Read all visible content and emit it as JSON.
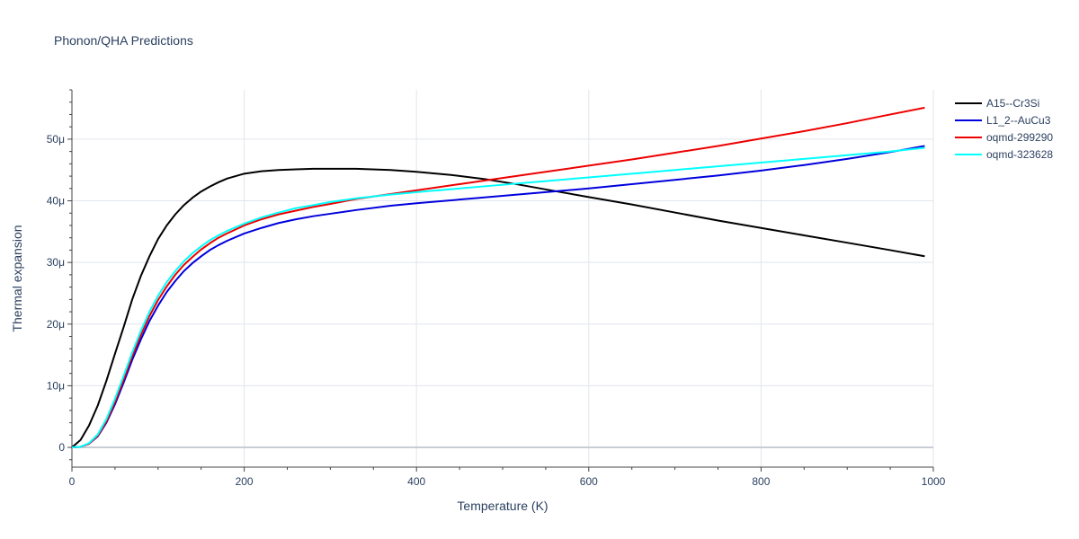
{
  "chart_data": {
    "type": "line",
    "title": "Phonon/QHA Predictions",
    "xlabel": "Temperature (K)",
    "ylabel": "Thermal expansion",
    "xlim": [
      0,
      1000
    ],
    "ylim": [
      -3.2e-06,
      5.8e-05
    ],
    "x_ticks": [
      0,
      200,
      400,
      600,
      800,
      1000
    ],
    "x_tick_labels": [
      "0",
      "200",
      "400",
      "600",
      "800",
      "1000"
    ],
    "y_ticks": [
      0,
      1e-05,
      2e-05,
      3e-05,
      4e-05,
      5e-05
    ],
    "y_tick_labels": [
      "0",
      "10μ",
      "20μ",
      "30μ",
      "40μ",
      "50μ"
    ],
    "grid": true,
    "legend_position": "top-right",
    "series": [
      {
        "name": "A15--Cr3Si",
        "color": "#000000",
        "x": [
          0,
          10,
          20,
          30,
          40,
          50,
          60,
          70,
          80,
          90,
          100,
          110,
          120,
          130,
          140,
          150,
          160,
          170,
          180,
          200,
          220,
          240,
          260,
          280,
          300,
          330,
          370,
          400,
          440,
          480,
          520,
          560,
          600,
          650,
          700,
          750,
          800,
          850,
          900,
          950,
          990
        ],
        "y": [
          0,
          1.2e-06,
          3.6e-06,
          6.8e-06,
          1.08e-05,
          1.52e-05,
          1.95e-05,
          2.4e-05,
          2.78e-05,
          3.1e-05,
          3.38e-05,
          3.6e-05,
          3.78e-05,
          3.93e-05,
          4.05e-05,
          4.15e-05,
          4.23e-05,
          4.3e-05,
          4.36e-05,
          4.44e-05,
          4.48e-05,
          4.5e-05,
          4.51e-05,
          4.52e-05,
          4.52e-05,
          4.52e-05,
          4.5e-05,
          4.47e-05,
          4.42e-05,
          4.35e-05,
          4.26e-05,
          4.16e-05,
          4.06e-05,
          3.94e-05,
          3.81e-05,
          3.68e-05,
          3.56e-05,
          3.44e-05,
          3.32e-05,
          3.2e-05,
          3.1e-05
        ]
      },
      {
        "name": "L1_2--AuCu3",
        "color": "#0000dd",
        "x": [
          0,
          10,
          20,
          30,
          40,
          50,
          60,
          70,
          80,
          90,
          100,
          110,
          120,
          130,
          140,
          150,
          160,
          170,
          180,
          200,
          220,
          240,
          260,
          280,
          300,
          330,
          370,
          400,
          450,
          500,
          550,
          600,
          650,
          700,
          750,
          800,
          850,
          900,
          950,
          990
        ],
        "y": [
          0,
          1e-07,
          6e-07,
          1.8e-06,
          4e-06,
          7e-06,
          1.05e-05,
          1.42e-05,
          1.75e-05,
          2.05e-05,
          2.3e-05,
          2.52e-05,
          2.7e-05,
          2.86e-05,
          2.99e-05,
          3.1e-05,
          3.2e-05,
          3.28e-05,
          3.35e-05,
          3.47e-05,
          3.56e-05,
          3.64e-05,
          3.7e-05,
          3.75e-05,
          3.79e-05,
          3.85e-05,
          3.92e-05,
          3.96e-05,
          4.02e-05,
          4.08e-05,
          4.14e-05,
          4.2e-05,
          4.27e-05,
          4.34e-05,
          4.41e-05,
          4.49e-05,
          4.58e-05,
          4.68e-05,
          4.79e-05,
          4.89e-05
        ]
      },
      {
        "name": "oqmd-299290",
        "color": "#ee0000",
        "x": [
          0,
          10,
          20,
          30,
          40,
          50,
          60,
          70,
          80,
          90,
          100,
          110,
          120,
          130,
          140,
          150,
          160,
          170,
          180,
          200,
          220,
          240,
          260,
          280,
          300,
          330,
          370,
          400,
          450,
          500,
          550,
          600,
          650,
          700,
          750,
          800,
          850,
          900,
          950,
          990
        ],
        "y": [
          0,
          1e-07,
          6e-07,
          1.9e-06,
          4.2e-06,
          7.4e-06,
          1.1e-05,
          1.48e-05,
          1.82e-05,
          2.13e-05,
          2.39e-05,
          2.61e-05,
          2.8e-05,
          2.96e-05,
          3.09e-05,
          3.21e-05,
          3.31e-05,
          3.4e-05,
          3.47e-05,
          3.6e-05,
          3.7e-05,
          3.78e-05,
          3.84e-05,
          3.9e-05,
          3.95e-05,
          4.03e-05,
          4.11e-05,
          4.17e-05,
          4.27e-05,
          4.37e-05,
          4.47e-05,
          4.57e-05,
          4.67e-05,
          4.78e-05,
          4.89e-05,
          5.01e-05,
          5.13e-05,
          5.26e-05,
          5.4e-05,
          5.51e-05
        ]
      },
      {
        "name": "oqmd-323628",
        "color": "#00ffff",
        "x": [
          0,
          10,
          20,
          30,
          40,
          50,
          60,
          70,
          80,
          90,
          100,
          110,
          120,
          130,
          140,
          150,
          160,
          170,
          180,
          200,
          220,
          240,
          260,
          280,
          300,
          330,
          370,
          400,
          450,
          500,
          550,
          600,
          650,
          700,
          750,
          800,
          850,
          900,
          950,
          990
        ],
        "y": [
          0,
          1e-07,
          7e-07,
          2.1e-06,
          4.6e-06,
          7.9e-06,
          1.16e-05,
          1.54e-05,
          1.89e-05,
          2.2e-05,
          2.46e-05,
          2.68e-05,
          2.86e-05,
          3.02e-05,
          3.15e-05,
          3.26e-05,
          3.36e-05,
          3.44e-05,
          3.51e-05,
          3.63e-05,
          3.73e-05,
          3.81e-05,
          3.88e-05,
          3.93e-05,
          3.98e-05,
          4.04e-05,
          4.1e-05,
          4.14e-05,
          4.2e-05,
          4.26e-05,
          4.32e-05,
          4.38e-05,
          4.44e-05,
          4.5e-05,
          4.56e-05,
          4.62e-05,
          4.68e-05,
          4.74e-05,
          4.8e-05,
          4.86e-05
        ]
      }
    ]
  }
}
